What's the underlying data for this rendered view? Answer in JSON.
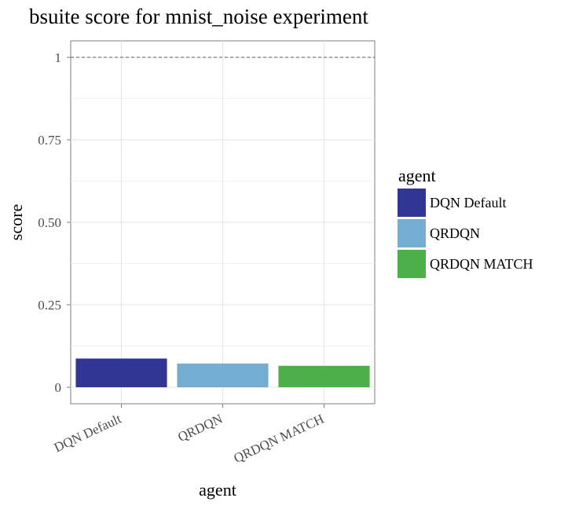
{
  "chart_data": {
    "type": "bar",
    "title": "bsuite score for mnist_noise experiment",
    "xlabel": "agent",
    "ylabel": "score",
    "categories": [
      "DQN Default",
      "QRDQN",
      "QRDQN MATCH"
    ],
    "values": [
      0.087,
      0.072,
      0.065
    ],
    "colors": [
      "#313695",
      "#74add1",
      "#4daf4a"
    ],
    "ylim": [
      -0.05,
      1.05
    ],
    "yticks": [
      0,
      0.25,
      0.5,
      0.75,
      1
    ],
    "ytick_labels": [
      "0",
      "0.25",
      "0.50",
      "0.75",
      "1"
    ],
    "reference_line": 1,
    "grid": true,
    "legend": {
      "title": "agent",
      "position": "right",
      "entries": [
        "DQN Default",
        "QRDQN",
        "QRDQN MATCH"
      ]
    }
  }
}
